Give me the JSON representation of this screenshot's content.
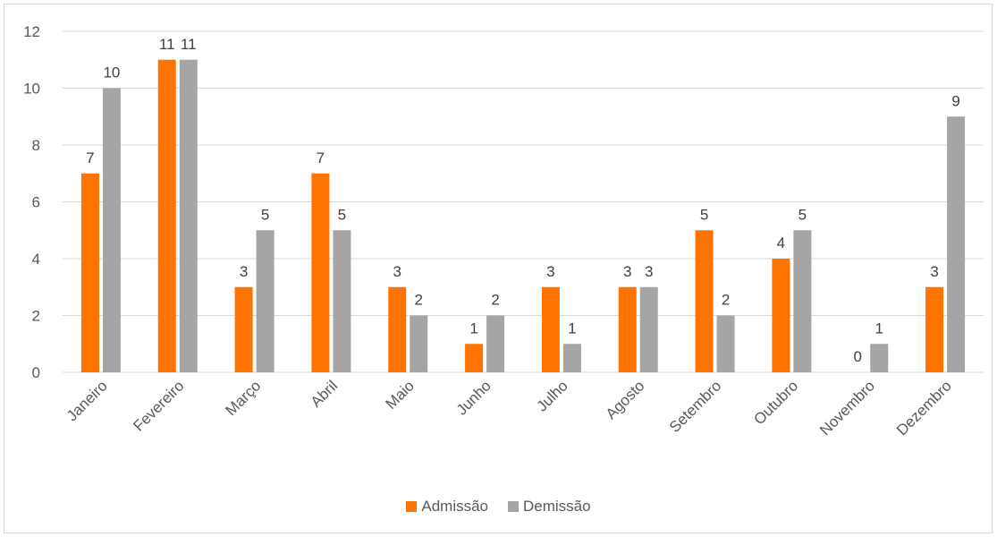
{
  "chart_data": {
    "type": "bar",
    "title": "",
    "xlabel": "",
    "ylabel": "",
    "categories": [
      "Janeiro",
      "Fevereiro",
      "Março",
      "Abril",
      "Maio",
      "Junho",
      "Julho",
      "Agosto",
      "Setembro",
      "Outubro",
      "Novembro",
      "Dezembro"
    ],
    "series": [
      {
        "name": "Admissão",
        "color": "#ff7300",
        "values": [
          7,
          11,
          3,
          7,
          3,
          1,
          3,
          3,
          5,
          4,
          0,
          3
        ]
      },
      {
        "name": "Demissão",
        "color": "#a5a5a5",
        "values": [
          10,
          11,
          5,
          5,
          2,
          2,
          1,
          3,
          2,
          5,
          1,
          9
        ]
      }
    ],
    "ylim": [
      0,
      12
    ],
    "yticks": [
      0,
      2,
      4,
      6,
      8,
      10,
      12
    ],
    "grid": true,
    "gridline_color": "#d9d9d9",
    "data_labels": true,
    "legend_position": "bottom"
  }
}
